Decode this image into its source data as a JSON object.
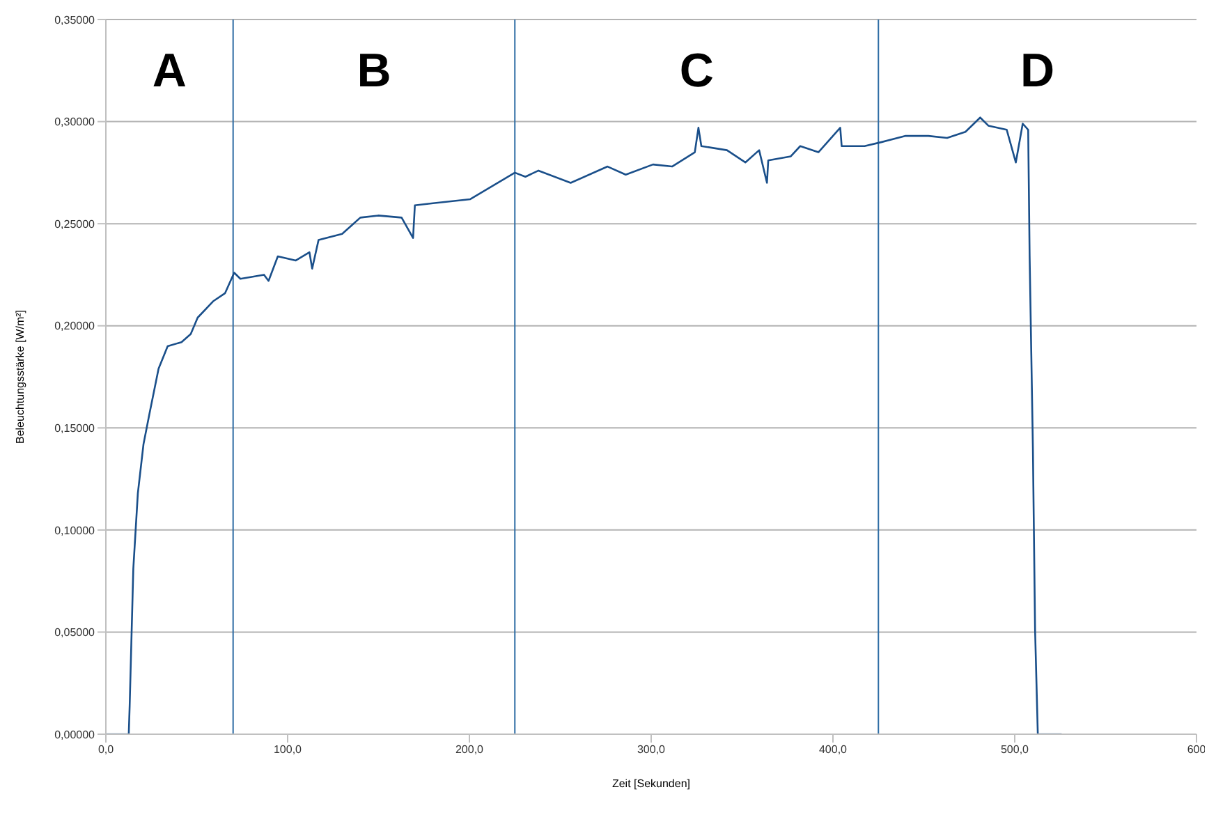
{
  "chart_data": {
    "type": "line",
    "xlabel": "Zeit [Sekunden]",
    "ylabel": "Beleuchtungsstärke [W/m²]",
    "x": [
      0,
      12,
      12.6,
      13.1,
      15.1,
      17.6,
      20.7,
      24,
      29,
      34,
      41.6,
      46.7,
      50.5,
      59,
      65.6,
      70.6,
      74,
      87,
      89.5,
      94.6,
      104.5,
      112,
      113.5,
      117,
      130,
      140,
      149.8,
      162.7,
      169,
      170,
      180,
      200.5,
      225,
      230.8,
      238,
      255.7,
      276,
      286,
      301,
      311.5,
      324,
      326,
      327.6,
      341.7,
      351.8,
      359.4,
      363.7,
      364.4,
      376.8,
      382,
      392,
      404,
      404.8,
      417.4,
      426.9,
      440,
      452.5,
      462.8,
      472.9,
      481,
      485.5,
      495.6,
      500.6,
      504.4,
      507.4,
      508.2,
      510,
      511.2,
      512.7,
      525.8
    ],
    "series": [
      {
        "color": "#1a4f8a",
        "values": [
          0,
          0,
          0,
          0.014,
          0.081,
          0.118,
          0.142,
          0.157,
          0.179,
          0.19,
          0.192,
          0.196,
          0.204,
          0.212,
          0.216,
          0.226,
          0.223,
          0.225,
          0.222,
          0.234,
          0.232,
          0.236,
          0.228,
          0.242,
          0.245,
          0.253,
          0.254,
          0.253,
          0.243,
          0.259,
          0.26,
          0.262,
          0.275,
          0.273,
          0.276,
          0.27,
          0.278,
          0.274,
          0.279,
          0.278,
          0.285,
          0.297,
          0.288,
          0.286,
          0.28,
          0.286,
          0.27,
          0.281,
          0.283,
          0.288,
          0.285,
          0.297,
          0.288,
          0.288,
          0.29,
          0.293,
          0.293,
          0.292,
          0.295,
          0.302,
          0.298,
          0.296,
          0.28,
          0.299,
          0.296,
          0.234,
          0.14,
          0.051,
          0,
          0
        ]
      }
    ],
    "xlim": [
      0,
      600
    ],
    "ylim": [
      0,
      0.35
    ],
    "xticks": [
      {
        "value": 0,
        "label": "0,0"
      },
      {
        "value": 100,
        "label": "100,0"
      },
      {
        "value": 200,
        "label": "200,0"
      },
      {
        "value": 300,
        "label": "300,0"
      },
      {
        "value": 400,
        "label": "400,0"
      },
      {
        "value": 500,
        "label": "500,0"
      },
      {
        "value": 600,
        "label": "600"
      }
    ],
    "yticks": [
      {
        "value": 0,
        "label": "0,00000"
      },
      {
        "value": 0.05,
        "label": "0,05000"
      },
      {
        "value": 0.1,
        "label": "0,10000"
      },
      {
        "value": 0.15,
        "label": "0,15000"
      },
      {
        "value": 0.2,
        "label": "0,20000"
      },
      {
        "value": 0.25,
        "label": "0,25000"
      },
      {
        "value": 0.3,
        "label": "0,30000"
      },
      {
        "value": 0.35,
        "label": "0,35000"
      }
    ],
    "grid": "y",
    "legend": false,
    "marker": "none",
    "line_style": "solid",
    "ref_lines": [
      {
        "axis": "x",
        "value": 70,
        "color": "#2e6ca4"
      },
      {
        "axis": "x",
        "value": 225,
        "color": "#2e6ca4"
      },
      {
        "axis": "x",
        "value": 425,
        "color": "#2e6ca4"
      }
    ],
    "annotations": [
      "A",
      "B",
      "C",
      "D"
    ]
  }
}
